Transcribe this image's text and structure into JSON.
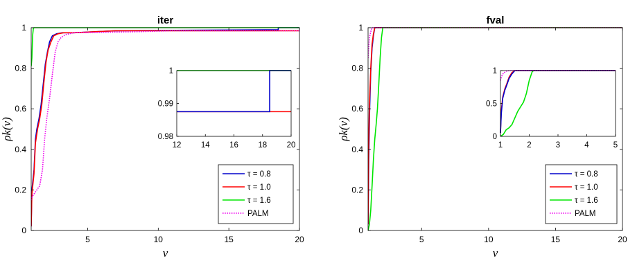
{
  "chart_data": [
    {
      "type": "line",
      "title": "iter",
      "xlabel": "ν",
      "ylabel": "ρk(ν)",
      "xlim": [
        1,
        20
      ],
      "ylim": [
        0,
        1
      ],
      "xticks": [
        "5",
        "10",
        "15",
        "20"
      ],
      "xtick_values": [
        5,
        10,
        15,
        20
      ],
      "yticks": [
        "0",
        "0.2",
        "0.4",
        "0.6",
        "0.8",
        "1"
      ],
      "ytick_values": [
        0,
        0.2,
        0.4,
        0.6,
        0.8,
        1
      ],
      "legend_position": "bottom-right",
      "series": [
        {
          "name": "τ = 0.8",
          "color": "#0000cc",
          "dash": "solid",
          "points": [
            [
              1,
              0.02
            ],
            [
              1.05,
              0.2
            ],
            [
              1.2,
              0.3
            ],
            [
              1.3,
              0.45
            ],
            [
              1.4,
              0.5
            ],
            [
              1.55,
              0.55
            ],
            [
              1.7,
              0.62
            ],
            [
              1.85,
              0.72
            ],
            [
              2.0,
              0.82
            ],
            [
              2.15,
              0.88
            ],
            [
              2.3,
              0.93
            ],
            [
              2.5,
              0.96
            ],
            [
              2.8,
              0.97
            ],
            [
              3.2,
              0.975
            ],
            [
              4,
              0.975
            ],
            [
              7,
              0.985
            ],
            [
              18.5,
              0.99
            ],
            [
              18.5,
              1
            ],
            [
              20,
              1
            ]
          ]
        },
        {
          "name": "τ = 1.0",
          "color": "#ff0000",
          "dash": "solid",
          "points": [
            [
              1,
              0.02
            ],
            [
              1.05,
              0.18
            ],
            [
              1.2,
              0.28
            ],
            [
              1.3,
              0.43
            ],
            [
              1.45,
              0.5
            ],
            [
              1.6,
              0.55
            ],
            [
              1.75,
              0.62
            ],
            [
              1.9,
              0.73
            ],
            [
              2.05,
              0.83
            ],
            [
              2.2,
              0.89
            ],
            [
              2.4,
              0.93
            ],
            [
              2.6,
              0.96
            ],
            [
              2.9,
              0.97
            ],
            [
              3.3,
              0.975
            ],
            [
              4,
              0.975
            ],
            [
              7,
              0.985
            ],
            [
              20,
              0.985
            ]
          ]
        },
        {
          "name": "τ = 1.6",
          "color": "#00e600",
          "dash": "solid",
          "points": [
            [
              1,
              0.81
            ],
            [
              1.05,
              0.85
            ],
            [
              1.1,
              0.96
            ],
            [
              1.15,
              0.995
            ],
            [
              1.2,
              1
            ],
            [
              20,
              1
            ]
          ]
        },
        {
          "name": "PALM",
          "color": "#ee00ee",
          "dash": "dotted",
          "points": [
            [
              1,
              0.15
            ],
            [
              1.1,
              0.17
            ],
            [
              1.3,
              0.19
            ],
            [
              1.6,
              0.22
            ],
            [
              1.8,
              0.3
            ],
            [
              1.95,
              0.45
            ],
            [
              2.1,
              0.55
            ],
            [
              2.3,
              0.65
            ],
            [
              2.5,
              0.77
            ],
            [
              2.7,
              0.88
            ],
            [
              2.9,
              0.93
            ],
            [
              3.1,
              0.95
            ],
            [
              3.4,
              0.965
            ],
            [
              4,
              0.975
            ],
            [
              8.5,
              0.98
            ],
            [
              11,
              0.985
            ],
            [
              20,
              0.985
            ]
          ]
        }
      ],
      "inset": {
        "xlim": [
          12,
          20
        ],
        "ylim": [
          0.98,
          1
        ],
        "xticks": [
          "12",
          "14",
          "16",
          "18",
          "20"
        ],
        "xtick_values": [
          12,
          14,
          16,
          18,
          20
        ],
        "yticks": [
          "0.98",
          "0.99",
          "1"
        ],
        "ytick_values": [
          0.98,
          0.99,
          1
        ],
        "series": [
          {
            "name": "τ = 1.0",
            "color": "#ff0000",
            "dash": "solid",
            "points": [
              [
                12,
                0.9875
              ],
              [
                20,
                0.9875
              ]
            ]
          },
          {
            "name": "τ = 1.6",
            "color": "#00e600",
            "dash": "solid",
            "points": [
              [
                12,
                1
              ],
              [
                20,
                1
              ]
            ]
          },
          {
            "name": "τ = 0.8",
            "color": "#0000cc",
            "dash": "solid",
            "points": [
              [
                12,
                0.9875
              ],
              [
                18.5,
                0.9875
              ],
              [
                18.5,
                1
              ],
              [
                20,
                1
              ]
            ]
          }
        ]
      }
    },
    {
      "type": "line",
      "title": "fval",
      "xlabel": "ν",
      "ylabel": "ρk(ν)",
      "xlim": [
        1,
        20
      ],
      "ylim": [
        0,
        1
      ],
      "xticks": [
        "5",
        "10",
        "15",
        "20"
      ],
      "xtick_values": [
        5,
        10,
        15,
        20
      ],
      "yticks": [
        "0",
        "0.2",
        "0.4",
        "0.6",
        "0.8",
        "1"
      ],
      "ytick_values": [
        0,
        0.2,
        0.4,
        0.6,
        0.8,
        1
      ],
      "legend_position": "bottom-right",
      "series": [
        {
          "name": "τ = 0.8",
          "color": "#0000cc",
          "dash": "solid",
          "points": [
            [
              1,
              0.03
            ],
            [
              1.05,
              0.35
            ],
            [
              1.12,
              0.6
            ],
            [
              1.2,
              0.78
            ],
            [
              1.3,
              0.9
            ],
            [
              1.4,
              0.96
            ],
            [
              1.5,
              1
            ],
            [
              20,
              1
            ]
          ]
        },
        {
          "name": "τ = 1.0",
          "color": "#ff0000",
          "dash": "solid",
          "points": [
            [
              1,
              0.03
            ],
            [
              1.04,
              0.4
            ],
            [
              1.1,
              0.62
            ],
            [
              1.2,
              0.8
            ],
            [
              1.3,
              0.92
            ],
            [
              1.4,
              0.97
            ],
            [
              1.5,
              1
            ],
            [
              20,
              1
            ]
          ]
        },
        {
          "name": "τ = 1.6",
          "color": "#00e600",
          "dash": "solid",
          "points": [
            [
              1,
              0
            ],
            [
              1.1,
              0.03
            ],
            [
              1.2,
              0.1
            ],
            [
              1.3,
              0.22
            ],
            [
              1.4,
              0.35
            ],
            [
              1.5,
              0.45
            ],
            [
              1.6,
              0.52
            ],
            [
              1.7,
              0.6
            ],
            [
              1.8,
              0.72
            ],
            [
              1.9,
              0.85
            ],
            [
              2.0,
              0.95
            ],
            [
              2.1,
              1
            ],
            [
              20,
              1
            ]
          ]
        },
        {
          "name": "PALM",
          "color": "#ee00ee",
          "dash": "dotted",
          "points": [
            [
              1,
              0.85
            ],
            [
              1.05,
              0.9
            ],
            [
              1.1,
              0.95
            ],
            [
              1.2,
              0.98
            ],
            [
              1.3,
              1
            ],
            [
              20,
              1
            ]
          ]
        }
      ],
      "inset": {
        "xlim": [
          1,
          5
        ],
        "ylim": [
          0,
          1
        ],
        "xticks": [
          "1",
          "2",
          "3",
          "4",
          "5"
        ],
        "xtick_values": [
          1,
          2,
          3,
          4,
          5
        ],
        "yticks": [
          "0",
          "0.5",
          "1"
        ],
        "ytick_values": [
          0,
          0.5,
          1
        ],
        "series": [
          {
            "name": "τ = 1.6",
            "color": "#00e600",
            "dash": "solid",
            "points": [
              [
                1,
                0
              ],
              [
                1.1,
                0.03
              ],
              [
                1.2,
                0.1
              ],
              [
                1.3,
                0.13
              ],
              [
                1.4,
                0.18
              ],
              [
                1.5,
                0.28
              ],
              [
                1.6,
                0.38
              ],
              [
                1.7,
                0.45
              ],
              [
                1.8,
                0.52
              ],
              [
                1.9,
                0.65
              ],
              [
                2.0,
                0.85
              ],
              [
                2.1,
                0.98
              ],
              [
                2.15,
                1
              ],
              [
                5,
                1
              ]
            ]
          },
          {
            "name": "τ = 1.0",
            "color": "#ff0000",
            "dash": "solid",
            "points": [
              [
                1,
                0.05
              ],
              [
                1.03,
                0.4
              ],
              [
                1.08,
                0.6
              ],
              [
                1.15,
                0.72
              ],
              [
                1.22,
                0.8
              ],
              [
                1.3,
                0.9
              ],
              [
                1.4,
                0.97
              ],
              [
                1.5,
                1
              ],
              [
                5,
                1
              ]
            ]
          },
          {
            "name": "τ = 0.8",
            "color": "#0000cc",
            "dash": "solid",
            "points": [
              [
                1,
                0.05
              ],
              [
                1.03,
                0.35
              ],
              [
                1.08,
                0.58
              ],
              [
                1.15,
                0.7
              ],
              [
                1.22,
                0.78
              ],
              [
                1.3,
                0.88
              ],
              [
                1.4,
                0.95
              ],
              [
                1.5,
                1
              ],
              [
                5,
                1
              ]
            ]
          },
          {
            "name": "PALM",
            "color": "#ee00ee",
            "dash": "dotted",
            "points": [
              [
                1,
                0.85
              ],
              [
                1.05,
                0.92
              ],
              [
                1.1,
                0.96
              ],
              [
                1.2,
                0.99
              ],
              [
                1.3,
                1
              ],
              [
                5,
                1
              ]
            ]
          }
        ]
      }
    }
  ]
}
